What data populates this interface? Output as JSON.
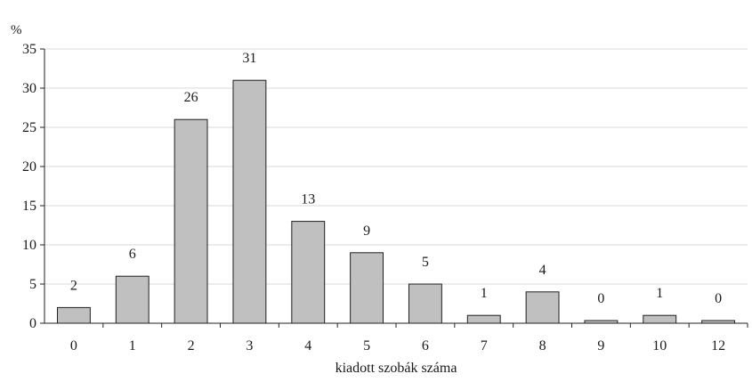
{
  "chart_data": {
    "type": "bar",
    "categories": [
      "0",
      "1",
      "2",
      "3",
      "4",
      "5",
      "6",
      "7",
      "8",
      "9",
      "10",
      "12"
    ],
    "values": [
      2,
      6,
      26,
      31,
      13,
      9,
      5,
      1,
      4,
      0,
      1,
      0
    ],
    "data_labels": [
      "2",
      "6",
      "26",
      "31",
      "13",
      "9",
      "5",
      "1",
      "4",
      "0",
      "1",
      "0"
    ],
    "title": "",
    "xlabel": "kiadott szobák száma",
    "ylabel": "%",
    "ylim": [
      0,
      35
    ],
    "yticks": [
      "0",
      "5",
      "10",
      "15",
      "20",
      "25",
      "30",
      "35"
    ],
    "grid": true,
    "legend": "none",
    "colors": {
      "bar_fill": "#c0c0c0",
      "bar_stroke": "#1f1f1f",
      "grid": "#d9d9d9",
      "axis": "#222222"
    }
  }
}
